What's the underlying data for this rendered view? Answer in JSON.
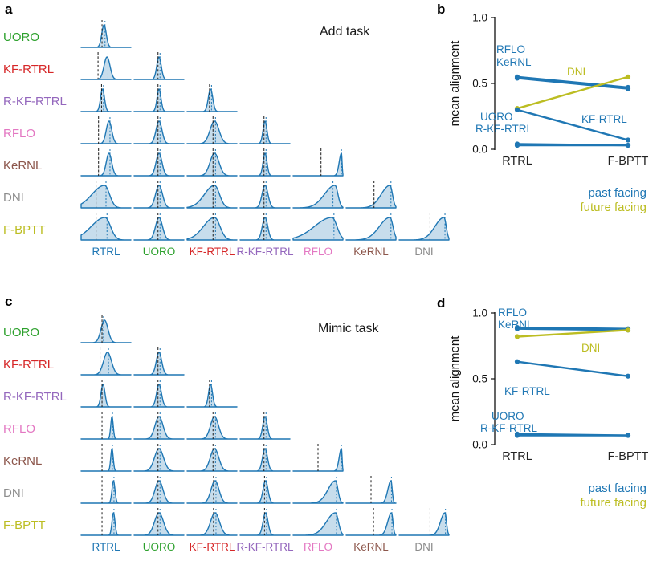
{
  "panels": {
    "a": {
      "label": "a",
      "title": "Add task"
    },
    "b": {
      "label": "b"
    },
    "c": {
      "label": "c",
      "title": "Mimic task"
    },
    "d": {
      "label": "d"
    }
  },
  "chart_data": [
    {
      "type": "density_matrix",
      "panel": "a",
      "title": "Add task",
      "rows": [
        {
          "text": "UORO",
          "color": "#2ca02c"
        },
        {
          "text": "KF-RTRL",
          "color": "#d62728"
        },
        {
          "text": "R-KF-RTRL",
          "color": "#9467bd"
        },
        {
          "text": "RFLO",
          "color": "#e377c2"
        },
        {
          "text": "KeRNL",
          "color": "#8c564b"
        },
        {
          "text": "DNI",
          "color": "#8c8c8c"
        },
        {
          "text": "F-BPTT",
          "color": "#bcbd22"
        }
      ],
      "cols": [
        {
          "text": "RTRL",
          "color": "#1f77b4"
        },
        {
          "text": "UORO",
          "color": "#2ca02c"
        },
        {
          "text": "KF-RTRL",
          "color": "#d62728"
        },
        {
          "text": "R-KF-RTRL",
          "color": "#9467bd"
        },
        {
          "text": "RFLO",
          "color": "#e377c2"
        },
        {
          "text": "KeRNL",
          "color": "#8c564b"
        },
        {
          "text": "DNI",
          "color": "#8c8c8c"
        }
      ],
      "cells": [
        [
          {
            "m": 0.46,
            "s": 0.045,
            "k": 0,
            "dash": 0.42,
            "mark": 0.48
          }
        ],
        [
          {
            "m": 0.52,
            "s": 0.06,
            "k": 0,
            "dash": 0.34,
            "mark": 0.54
          },
          {
            "m": 0.5,
            "s": 0.045,
            "k": 0,
            "dash": 0.48,
            "mark": 0.52
          }
        ],
        [
          {
            "m": 0.43,
            "s": 0.04,
            "k": 0,
            "dash": 0.41,
            "mark": 0.45
          },
          {
            "m": 0.5,
            "s": 0.04,
            "k": 0,
            "dash": 0.48,
            "mark": 0.52
          },
          {
            "m": 0.47,
            "s": 0.045,
            "k": 0,
            "dash": 0.45,
            "mark": 0.49
          }
        ],
        [
          {
            "m": 0.56,
            "s": 0.055,
            "k": 0,
            "dash": 0.35,
            "mark": 0.58
          },
          {
            "m": 0.5,
            "s": 0.06,
            "k": 0,
            "dash": 0.48,
            "mark": 0.52
          },
          {
            "m": 0.55,
            "s": 0.09,
            "k": 0,
            "dash": 0.52,
            "mark": 0.57
          },
          {
            "m": 0.5,
            "s": 0.04,
            "k": 0,
            "dash": 0.48,
            "mark": 0.52
          }
        ],
        [
          {
            "m": 0.56,
            "s": 0.055,
            "k": 0,
            "dash": 0.35,
            "mark": 0.58
          },
          {
            "m": 0.5,
            "s": 0.06,
            "k": 0,
            "dash": 0.48,
            "mark": 0.52
          },
          {
            "m": 0.55,
            "s": 0.09,
            "k": 0,
            "dash": 0.52,
            "mark": 0.57
          },
          {
            "m": 0.5,
            "s": 0.04,
            "k": 0,
            "dash": 0.48,
            "mark": 0.52
          },
          {
            "m": 0.97,
            "s": 0.013,
            "k": 0.5,
            "dash": 0.56,
            "mark": 0.97
          }
        ],
        [
          {
            "m": 0.47,
            "s": 0.1,
            "k": 0.3,
            "dash": 0.3,
            "mark": 0.5
          },
          {
            "m": 0.5,
            "s": 0.07,
            "k": 0,
            "dash": 0.48,
            "mark": 0.52
          },
          {
            "m": 0.55,
            "s": 0.1,
            "k": 0.2,
            "dash": 0.52,
            "mark": 0.57
          },
          {
            "m": 0.5,
            "s": 0.06,
            "k": 0,
            "dash": 0.48,
            "mark": 0.52
          },
          {
            "m": 0.84,
            "s": 0.06,
            "k": 0.5,
            "dash": null,
            "mark": 0.8
          },
          {
            "m": 0.88,
            "s": 0.05,
            "k": 0.5,
            "dash": 0.56,
            "mark": 0.9
          }
        ],
        [
          {
            "m": 0.48,
            "s": 0.11,
            "k": 0.3,
            "dash": 0.3,
            "mark": 0.52
          },
          {
            "m": 0.5,
            "s": 0.07,
            "k": 0,
            "dash": 0.48,
            "mark": 0.52
          },
          {
            "m": 0.55,
            "s": 0.11,
            "k": 0.2,
            "dash": 0.52,
            "mark": 0.57
          },
          {
            "m": 0.5,
            "s": 0.055,
            "k": 0,
            "dash": 0.48,
            "mark": 0.52
          },
          {
            "m": 0.78,
            "s": 0.1,
            "k": 0.5,
            "dash": null,
            "mark": 0.82
          },
          {
            "m": 0.88,
            "s": 0.06,
            "k": 0.5,
            "dash": null,
            "mark": 0.9
          },
          {
            "m": 0.9,
            "s": 0.045,
            "k": 0.6,
            "dash": 0.62,
            "mark": 0.92
          }
        ]
      ]
    },
    {
      "type": "line",
      "panel": "b",
      "ylabel": "mean alignment",
      "ylim": [
        0,
        1
      ],
      "yticks": [
        0,
        0.5,
        1
      ],
      "categories": [
        "RTRL",
        "F-BPTT"
      ],
      "series": [
        {
          "name": "RFLO",
          "color": "#1f77b4",
          "values": [
            0.55,
            0.47
          ]
        },
        {
          "name": "KeRNL",
          "color": "#1f77b4",
          "values": [
            0.54,
            0.46
          ]
        },
        {
          "name": "DNI",
          "color": "#bcbd22",
          "values": [
            0.31,
            0.55
          ]
        },
        {
          "name": "KF-RTRL",
          "color": "#1f77b4",
          "values": [
            0.3,
            0.07
          ]
        },
        {
          "name": "UORO",
          "color": "#1f77b4",
          "values": [
            0.04,
            0.03
          ]
        },
        {
          "name": "R-KF-RTRL",
          "color": "#1f77b4",
          "values": [
            0.03,
            0.03
          ]
        }
      ],
      "annotations": [
        {
          "text": "RFLO",
          "color": "#1f77b4",
          "x": 62,
          "y": 58
        },
        {
          "text": "KeRNL",
          "color": "#1f77b4",
          "x": 62,
          "y": 74
        },
        {
          "text": "DNI",
          "color": "#bcbd22",
          "x": 150,
          "y": 86
        },
        {
          "text": "UORO",
          "color": "#1f77b4",
          "x": 42,
          "y": 142
        },
        {
          "text": "R-KF-RTRL",
          "color": "#1f77b4",
          "x": 36,
          "y": 157
        },
        {
          "text": "KF-RTRL",
          "color": "#1f77b4",
          "x": 168,
          "y": 145
        }
      ],
      "legend": [
        {
          "text": "past facing",
          "color": "#1f77b4"
        },
        {
          "text": "future facing",
          "color": "#bcbd22"
        }
      ]
    },
    {
      "type": "density_matrix",
      "panel": "c",
      "title": "Mimic task",
      "rows": [
        {
          "text": "UORO",
          "color": "#2ca02c"
        },
        {
          "text": "KF-RTRL",
          "color": "#d62728"
        },
        {
          "text": "R-KF-RTRL",
          "color": "#9467bd"
        },
        {
          "text": "RFLO",
          "color": "#e377c2"
        },
        {
          "text": "KeRNL",
          "color": "#8c564b"
        },
        {
          "text": "DNI",
          "color": "#8c8c8c"
        },
        {
          "text": "F-BPTT",
          "color": "#bcbd22"
        }
      ],
      "cols": [
        {
          "text": "RTRL",
          "color": "#1f77b4"
        },
        {
          "text": "UORO",
          "color": "#2ca02c"
        },
        {
          "text": "KF-RTRL",
          "color": "#d62728"
        },
        {
          "text": "R-KF-RTRL",
          "color": "#9467bd"
        },
        {
          "text": "RFLO",
          "color": "#e377c2"
        },
        {
          "text": "KeRNL",
          "color": "#8c564b"
        },
        {
          "text": "DNI",
          "color": "#8c8c8c"
        }
      ],
      "cells": [
        [
          {
            "m": 0.47,
            "s": 0.07,
            "k": 0,
            "dash": 0.42,
            "mark": 0.45
          }
        ],
        [
          {
            "m": 0.53,
            "s": 0.08,
            "k": 0,
            "dash": 0.38,
            "mark": 0.55
          },
          {
            "m": 0.5,
            "s": 0.055,
            "k": 0,
            "dash": 0.48,
            "mark": 0.52
          }
        ],
        [
          {
            "m": 0.44,
            "s": 0.04,
            "k": 0,
            "dash": 0.42,
            "mark": 0.46
          },
          {
            "m": 0.5,
            "s": 0.05,
            "k": 0,
            "dash": 0.48,
            "mark": 0.52
          },
          {
            "m": 0.47,
            "s": 0.04,
            "k": 0,
            "dash": 0.45,
            "mark": 0.49
          }
        ],
        [
          {
            "m": 0.62,
            "s": 0.025,
            "k": 0,
            "dash": 0.42,
            "mark": 0.63
          },
          {
            "m": 0.5,
            "s": 0.08,
            "k": 0,
            "dash": 0.48,
            "mark": 0.52
          },
          {
            "m": 0.55,
            "s": 0.08,
            "k": 0,
            "dash": 0.52,
            "mark": 0.57
          },
          {
            "m": 0.5,
            "s": 0.045,
            "k": 0,
            "dash": 0.48,
            "mark": 0.52
          }
        ],
        [
          {
            "m": 0.62,
            "s": 0.025,
            "k": 0,
            "dash": 0.42,
            "mark": 0.63
          },
          {
            "m": 0.5,
            "s": 0.09,
            "k": 0,
            "dash": 0.48,
            "mark": 0.52
          },
          {
            "m": 0.55,
            "s": 0.085,
            "k": 0,
            "dash": 0.52,
            "mark": 0.57
          },
          {
            "m": 0.5,
            "s": 0.05,
            "k": 0,
            "dash": 0.48,
            "mark": 0.52
          },
          {
            "m": 0.97,
            "s": 0.013,
            "k": 0.5,
            "dash": 0.5,
            "mark": 0.97
          }
        ],
        [
          {
            "m": 0.65,
            "s": 0.03,
            "k": 0,
            "dash": 0.42,
            "mark": 0.66
          },
          {
            "m": 0.5,
            "s": 0.08,
            "k": 0,
            "dash": 0.48,
            "mark": 0.52
          },
          {
            "m": 0.56,
            "s": 0.08,
            "k": 0,
            "dash": 0.53,
            "mark": 0.58
          },
          {
            "m": 0.51,
            "s": 0.05,
            "k": 0,
            "dash": 0.49,
            "mark": 0.53
          },
          {
            "m": 0.85,
            "s": 0.05,
            "k": 0.4,
            "dash": null,
            "mark": 0.87
          },
          {
            "m": 0.9,
            "s": 0.025,
            "k": 0.3,
            "dash": 0.5,
            "mark": 0.91
          }
        ],
        [
          {
            "m": 0.65,
            "s": 0.03,
            "k": 0,
            "dash": 0.42,
            "mark": 0.66
          },
          {
            "m": 0.5,
            "s": 0.09,
            "k": 0,
            "dash": 0.48,
            "mark": 0.52
          },
          {
            "m": 0.56,
            "s": 0.09,
            "k": 0,
            "dash": 0.53,
            "mark": 0.58
          },
          {
            "m": 0.51,
            "s": 0.05,
            "k": 0,
            "dash": 0.49,
            "mark": 0.53
          },
          {
            "m": 0.85,
            "s": 0.06,
            "k": 0.4,
            "dash": null,
            "mark": 0.87
          },
          {
            "m": 0.91,
            "s": 0.03,
            "k": 0.3,
            "dash": 0.55,
            "mark": 0.92
          },
          {
            "m": 0.92,
            "s": 0.03,
            "k": 0.4,
            "dash": 0.62,
            "mark": 0.93
          }
        ]
      ]
    },
    {
      "type": "line",
      "panel": "d",
      "ylabel": "mean alignment",
      "ylim": [
        0,
        1
      ],
      "yticks": [
        0,
        0.5,
        1
      ],
      "categories": [
        "RTRL",
        "F-BPTT"
      ],
      "series": [
        {
          "name": "RFLO",
          "color": "#1f77b4",
          "values": [
            0.89,
            0.88
          ]
        },
        {
          "name": "KeRNL",
          "color": "#1f77b4",
          "values": [
            0.88,
            0.87
          ]
        },
        {
          "name": "DNI",
          "color": "#bcbd22",
          "values": [
            0.82,
            0.87
          ]
        },
        {
          "name": "KF-RTRL",
          "color": "#1f77b4",
          "values": [
            0.63,
            0.52
          ]
        },
        {
          "name": "UORO",
          "color": "#1f77b4",
          "values": [
            0.08,
            0.07
          ]
        },
        {
          "name": "R-KF-RTRL",
          "color": "#1f77b4",
          "values": [
            0.07,
            0.07
          ]
        }
      ],
      "annotations": [
        {
          "text": "RFLO",
          "color": "#1f77b4",
          "x": 64,
          "y": 18
        },
        {
          "text": "KeRNL",
          "color": "#1f77b4",
          "x": 64,
          "y": 33
        },
        {
          "text": "DNI",
          "color": "#bcbd22",
          "x": 168,
          "y": 62
        },
        {
          "text": "KF-RTRL",
          "color": "#1f77b4",
          "x": 72,
          "y": 116
        },
        {
          "text": "UORO",
          "color": "#1f77b4",
          "x": 56,
          "y": 147
        },
        {
          "text": "R-KF-RTRL",
          "color": "#1f77b4",
          "x": 42,
          "y": 162
        }
      ],
      "legend": [
        {
          "text": "past facing",
          "color": "#1f77b4"
        },
        {
          "text": "future facing",
          "color": "#bcbd22"
        }
      ]
    }
  ]
}
